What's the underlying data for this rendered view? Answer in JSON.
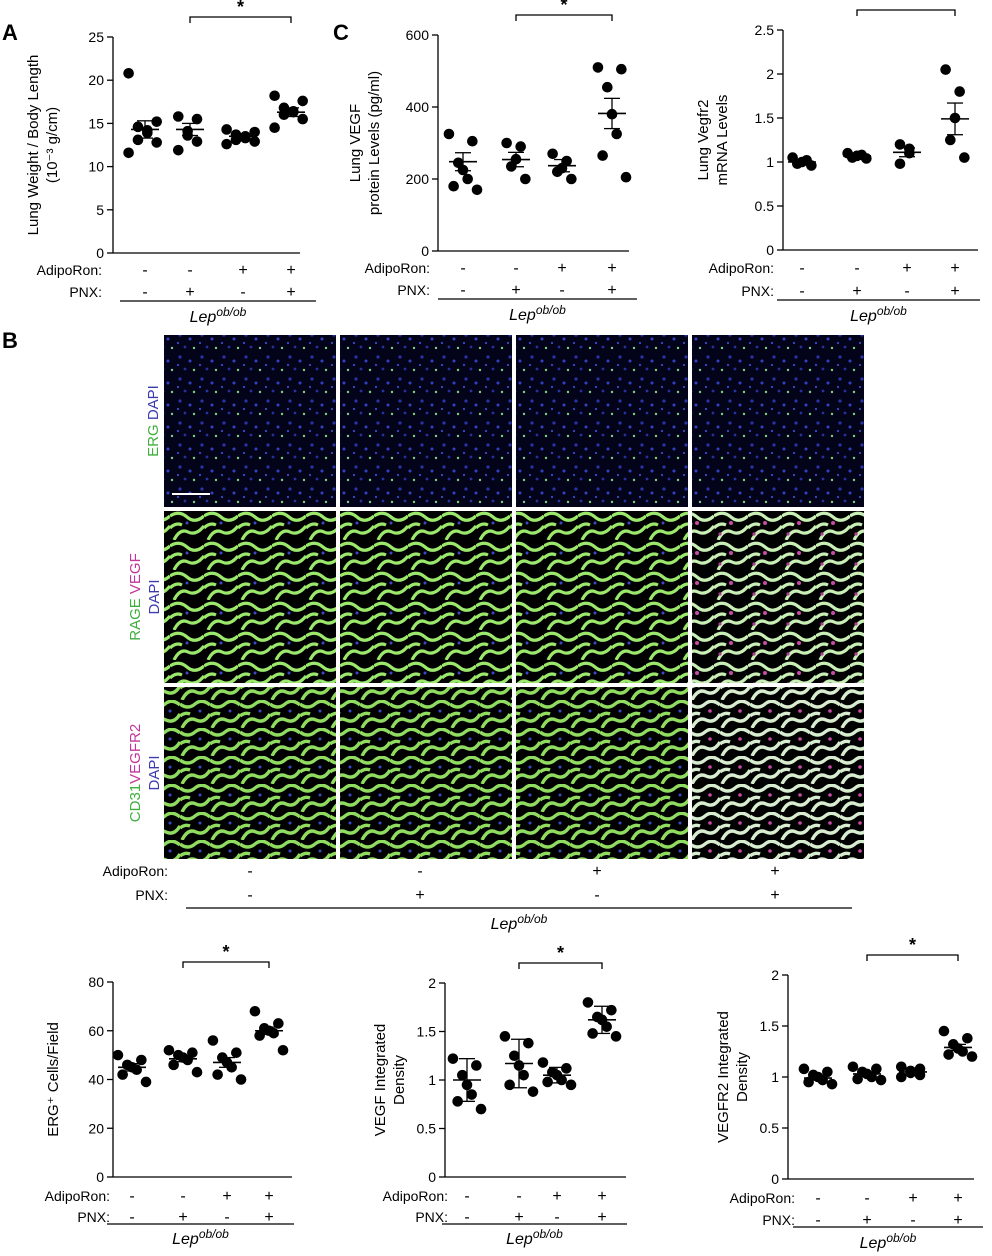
{
  "panel_letters": [
    "A",
    "B",
    "C"
  ],
  "significance_symbol": "*",
  "treatment_labels": {
    "adiporon": "AdipoRon:",
    "pnx": "PNX:"
  },
  "genotype": {
    "base": "Lep",
    "sup": "ob/ob"
  },
  "chart_data": [
    {
      "id": "lung_weight",
      "type": "scatter",
      "ylabel": "Lung Weight / Body Length (10⁻³ g/cm)",
      "ylim": [
        0,
        25
      ],
      "yticks": [
        0,
        5,
        10,
        15,
        20,
        25
      ],
      "ytick_labels": [
        "0",
        "5",
        "10",
        "15",
        "20",
        "25"
      ],
      "adiporon": [
        "-",
        "-",
        "+",
        "+"
      ],
      "pnx": [
        "-",
        "+",
        "-",
        "+"
      ],
      "groups": [
        {
          "points": [
            20.8,
            15.2,
            14.6,
            14.2,
            13.9,
            13.1,
            12.8,
            11.6
          ],
          "mean": 14.3,
          "err": 1.0
        },
        {
          "points": [
            15.8,
            15.5,
            14.1,
            13.6,
            12.9,
            11.9
          ],
          "mean": 14.3,
          "err": 0.7
        },
        {
          "points": [
            14.3,
            14.0,
            13.7,
            13.5,
            13.3,
            13.1,
            12.9,
            12.6
          ],
          "mean": 13.5,
          "err": 0.3
        },
        {
          "points": [
            18.2,
            17.6,
            16.8,
            16.4,
            16.3,
            16.0,
            15.5,
            14.5
          ],
          "mean": 16.3,
          "err": 0.5
        }
      ],
      "significance": {
        "from": 1,
        "to": 3,
        "label": "*"
      }
    },
    {
      "id": "vegf_protein",
      "type": "scatter",
      "ylabel": "Lung VEGF protein Levels (pg/ml)",
      "ylim": [
        0,
        600
      ],
      "yticks": [
        0,
        200,
        400,
        600
      ],
      "ytick_labels": [
        "0",
        "200",
        "400",
        "600"
      ],
      "adiporon": [
        "-",
        "-",
        "+",
        "+"
      ],
      "pnx": [
        "-",
        "+",
        "-",
        "+"
      ],
      "groups": [
        {
          "points": [
            325,
            305,
            245,
            225,
            200,
            180,
            170
          ],
          "mean": 248,
          "err": 25
        },
        {
          "points": [
            300,
            290,
            255,
            235,
            200
          ],
          "mean": 254,
          "err": 20
        },
        {
          "points": [
            270,
            250,
            230,
            220,
            200
          ],
          "mean": 237,
          "err": 17
        },
        {
          "points": [
            510,
            505,
            455,
            380,
            325,
            265,
            205
          ],
          "mean": 382,
          "err": 42
        }
      ],
      "significance": {
        "from": 1,
        "to": 3,
        "label": "*"
      }
    },
    {
      "id": "vegfr2_mrna",
      "type": "scatter",
      "ylabel": "Lung Vegfr2 mRNA Levels",
      "ylim": [
        0,
        2.5
      ],
      "yticks": [
        0,
        0.5,
        1,
        1.5,
        2,
        2.5
      ],
      "ytick_labels": [
        "0",
        "0.5",
        "1",
        "1.5",
        "2",
        "2.5"
      ],
      "adiporon": [
        "-",
        "-",
        "+",
        "+"
      ],
      "pnx": [
        "-",
        "+",
        "-",
        "+"
      ],
      "groups": [
        {
          "points": [
            1.05,
            1.02,
            1.0,
            0.98,
            0.96
          ],
          "mean": 1.0,
          "err": 0.02
        },
        {
          "points": [
            1.1,
            1.08,
            1.07,
            1.05,
            1.04
          ],
          "mean": 1.07,
          "err": 0.02
        },
        {
          "points": [
            1.2,
            1.15,
            1.1,
            0.98
          ],
          "mean": 1.11,
          "err": 0.05
        },
        {
          "points": [
            2.05,
            1.8,
            1.5,
            1.25,
            1.05
          ],
          "mean": 1.49,
          "err": 0.18
        }
      ],
      "significance": {
        "from": 1,
        "to": 3,
        "label": "*"
      }
    },
    {
      "id": "erg_cells",
      "type": "scatter",
      "ylabel": "ERG⁺ Cells/Field",
      "ylim": [
        0,
        80
      ],
      "yticks": [
        0,
        20,
        40,
        60,
        80
      ],
      "ytick_labels": [
        "0",
        "20",
        "40",
        "60",
        "80"
      ],
      "adiporon": [
        "-",
        "-",
        "+",
        "+"
      ],
      "pnx": [
        "-",
        "+",
        "-",
        "+"
      ],
      "groups": [
        {
          "points": [
            50,
            48,
            46,
            45,
            44,
            42,
            39
          ],
          "mean": 45,
          "err": 1.5
        },
        {
          "points": [
            52,
            51,
            50,
            49,
            48,
            46,
            43
          ],
          "mean": 48.5,
          "err": 1.2
        },
        {
          "points": [
            56,
            51,
            49,
            47,
            45,
            42,
            40
          ],
          "mean": 47,
          "err": 2.0
        },
        {
          "points": [
            68,
            63,
            61,
            60,
            59,
            58,
            52
          ],
          "mean": 60,
          "err": 1.5
        }
      ],
      "significance": {
        "from": 1,
        "to": 3,
        "label": "*"
      }
    },
    {
      "id": "vegf_density",
      "type": "scatter",
      "ylabel": "VEGF Integrated Density",
      "ylim": [
        0,
        2
      ],
      "yticks": [
        0,
        0.5,
        1,
        1.5,
        2
      ],
      "ytick_labels": [
        "0",
        "0.5",
        "1",
        "1.5",
        "2"
      ],
      "adiporon": [
        "-",
        "-",
        "+",
        "+"
      ],
      "pnx": [
        "-",
        "+",
        "-",
        "+"
      ],
      "groups": [
        {
          "points": [
            1.22,
            1.15,
            1.05,
            0.95,
            0.85,
            0.78,
            0.7
          ],
          "mean": 1.0,
          "err": 0.22
        },
        {
          "points": [
            1.45,
            1.38,
            1.25,
            1.15,
            1.05,
            0.95,
            0.88
          ],
          "mean": 1.17,
          "err": 0.25
        },
        {
          "points": [
            1.18,
            1.12,
            1.08,
            1.05,
            1.0,
            0.98,
            0.95
          ],
          "mean": 1.05,
          "err": 0.08
        },
        {
          "points": [
            1.8,
            1.72,
            1.65,
            1.62,
            1.55,
            1.48,
            1.45
          ],
          "mean": 1.62,
          "err": 0.14
        }
      ],
      "significance": {
        "from": 1,
        "to": 3,
        "label": "*"
      }
    },
    {
      "id": "vegfr2_density",
      "type": "scatter",
      "ylabel": "VEGFR2 Integrated Density",
      "ylim": [
        0,
        2
      ],
      "yticks": [
        0,
        0.5,
        1,
        1.5,
        2
      ],
      "ytick_labels": [
        "0",
        "0.5",
        "1",
        "1.5",
        "2"
      ],
      "adiporon": [
        "-",
        "-",
        "+",
        "+"
      ],
      "pnx": [
        "-",
        "+",
        "-",
        "+"
      ],
      "groups": [
        {
          "points": [
            1.08,
            1.05,
            1.02,
            1.0,
            0.97,
            0.95,
            0.93
          ],
          "mean": 0.99,
          "err": 0.02
        },
        {
          "points": [
            1.1,
            1.08,
            1.05,
            1.03,
            1.0,
            0.98,
            0.97
          ],
          "mean": 1.03,
          "err": 0.02
        },
        {
          "points": [
            1.1,
            1.08,
            1.06,
            1.04,
            1.02,
            1.0
          ],
          "mean": 1.05,
          "err": 0.02
        },
        {
          "points": [
            1.45,
            1.38,
            1.32,
            1.28,
            1.25,
            1.22,
            1.2
          ],
          "mean": 1.29,
          "err": 0.03
        }
      ],
      "significance": {
        "from": 1,
        "to": 3,
        "label": "*"
      }
    }
  ],
  "micrographs": {
    "row_labels": [
      [
        {
          "text": "ERG",
          "color": "#3fae3f"
        },
        {
          "text": " DAPI",
          "color": "#3c3cb0"
        }
      ],
      [
        {
          "text": "RAGE",
          "color": "#3fae3f"
        },
        {
          "text": " VEGF",
          "color": "#c2369a"
        },
        {
          "text": "|",
          "color": "#ffffff"
        },
        {
          "text": "DAPI",
          "color": "#3c3cb0"
        }
      ],
      [
        {
          "text": "CD31",
          "color": "#3fae3f"
        },
        {
          "text": "VEGFR2",
          "color": "#c2369a"
        },
        {
          "text": "|",
          "color": "#ffffff"
        },
        {
          "text": "DAPI",
          "color": "#3c3cb0"
        }
      ]
    ],
    "adiporon": [
      "-",
      "-",
      "+",
      "+"
    ],
    "pnx": [
      "-",
      "+",
      "-",
      "+"
    ]
  }
}
